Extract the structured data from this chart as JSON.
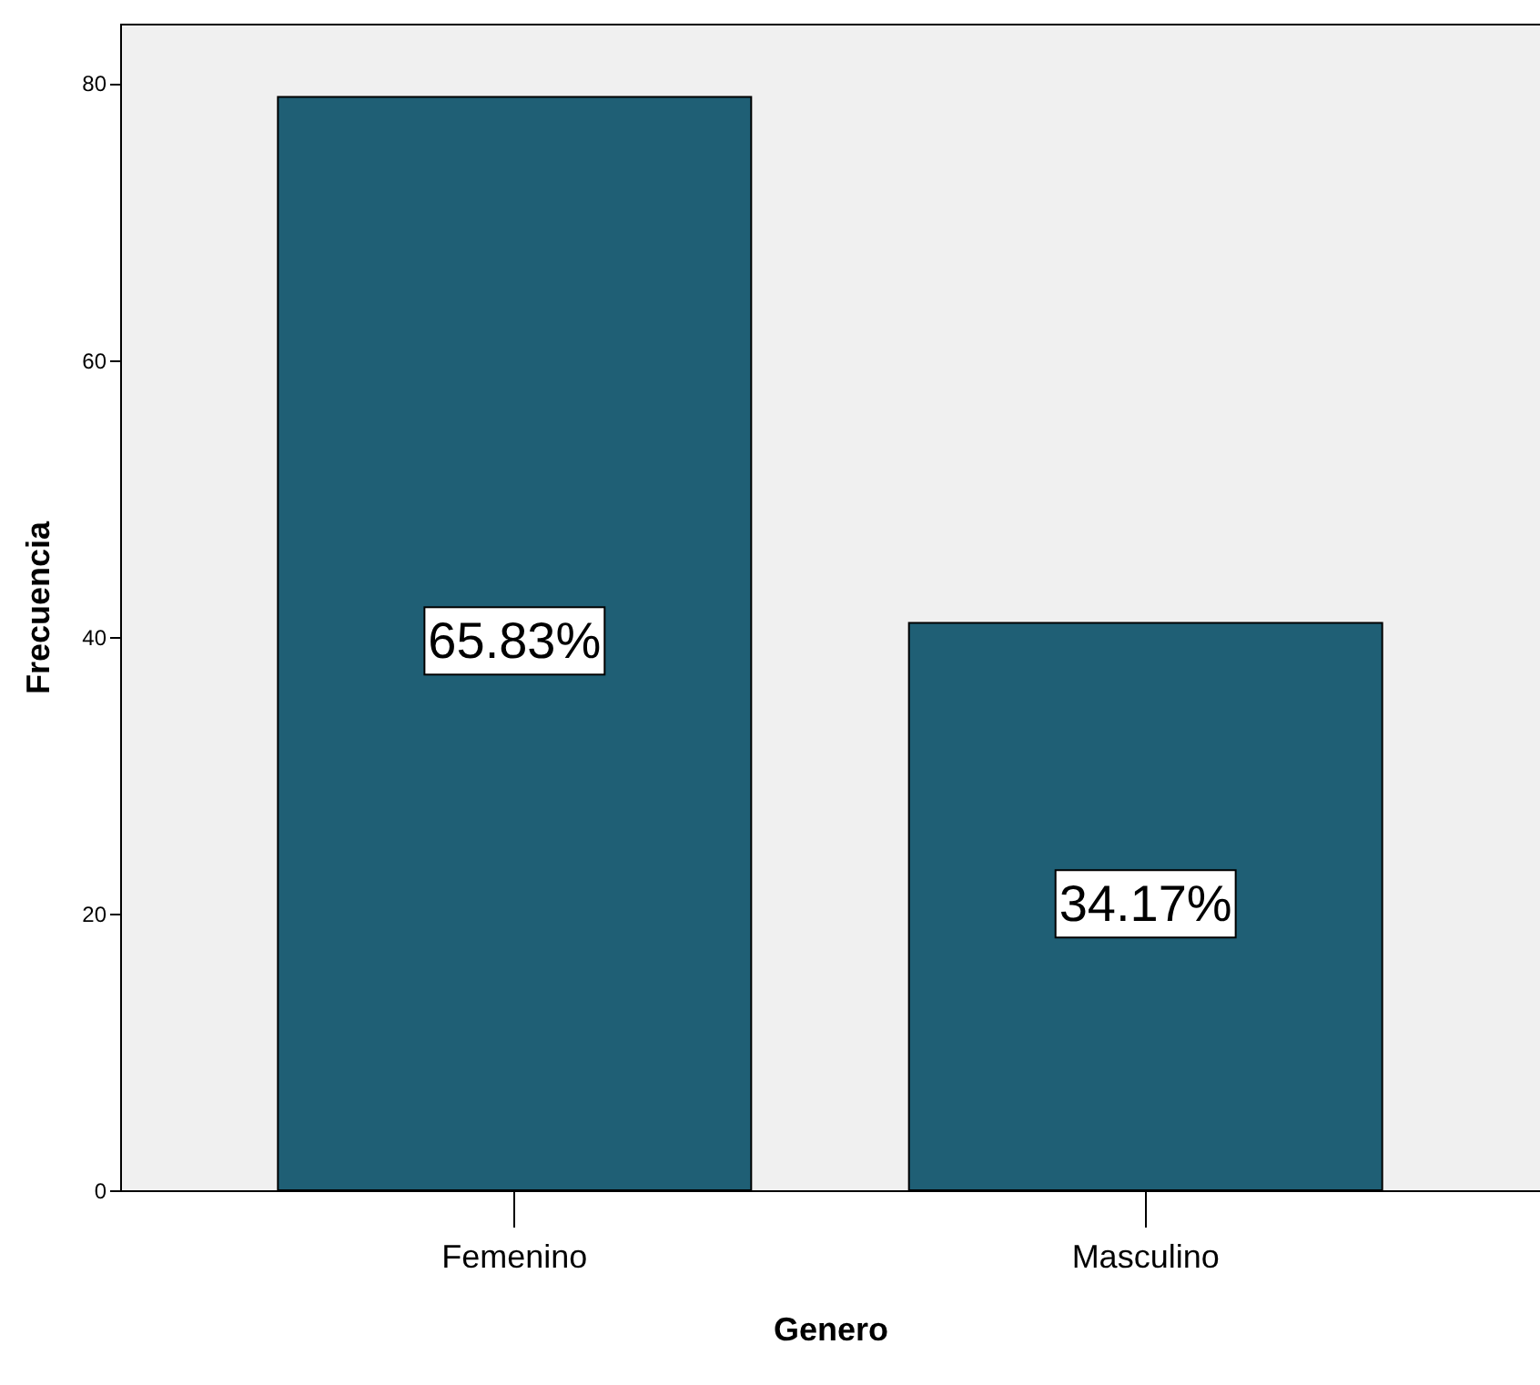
{
  "chart_data": {
    "type": "bar",
    "xlabel": "Genero",
    "ylabel": "Frecuencia",
    "categories": [
      "Femenino",
      "Masculino"
    ],
    "values": [
      79,
      41
    ],
    "color": "#1f5f75",
    "annotations": [
      "65.83%",
      "34.17%"
    ],
    "ylim": [
      0,
      84.3
    ],
    "yticks": [
      0,
      20,
      40,
      60,
      80
    ],
    "grid": false
  }
}
